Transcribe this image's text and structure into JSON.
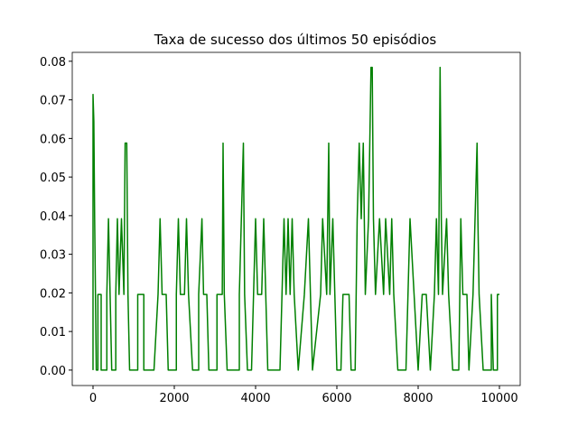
{
  "chart_data": {
    "type": "line",
    "title": "Taxa de sucesso dos últimos 50 episódios",
    "color": "#008000",
    "x": [
      0,
      0,
      20,
      40,
      60,
      80,
      120,
      120,
      200,
      200,
      340,
      340,
      380,
      420,
      460,
      560,
      560,
      600,
      640,
      700,
      760,
      790,
      830,
      860,
      900,
      1100,
      1100,
      1250,
      1250,
      1500,
      1600,
      1650,
      1700,
      1800,
      1850,
      2050,
      2050,
      2100,
      2150,
      2250,
      2300,
      2350,
      2450,
      2600,
      2600,
      2680,
      2720,
      2800,
      2850,
      3050,
      3050,
      3180,
      3200,
      3230,
      3300,
      3600,
      3600,
      3700,
      3730,
      3800,
      3900,
      3950,
      4000,
      4050,
      4150,
      4200,
      4250,
      4300,
      4600,
      4650,
      4700,
      4750,
      4800,
      4850,
      4900,
      4950,
      5050,
      5200,
      5300,
      5350,
      5400,
      5600,
      5650,
      5750,
      5800,
      5830,
      5900,
      5950,
      6000,
      6100,
      6150,
      6300,
      6350,
      6450,
      6500,
      6550,
      6600,
      6650,
      6700,
      6780,
      6840,
      6870,
      6900,
      6950,
      7050,
      7150,
      7200,
      7300,
      7350,
      7400,
      7500,
      7700,
      7750,
      7800,
      7900,
      8000,
      8100,
      8200,
      8300,
      8400,
      8450,
      8500,
      8540,
      8570,
      8600,
      8700,
      8750,
      8850,
      9000,
      9050,
      9100,
      9200,
      9250,
      9350,
      9400,
      9450,
      9470,
      9500,
      9600,
      9800,
      9800,
      9850,
      9950,
      9950,
      10000
    ],
    "values": [
      0,
      0.0714,
      0.0645,
      0.0392,
      0.0196,
      0,
      0,
      0.0196,
      0.0196,
      0,
      0,
      0.0196,
      0.0392,
      0.0196,
      0,
      0,
      0.0196,
      0.0392,
      0.0196,
      0.0392,
      0.0196,
      0.0588,
      0.0588,
      0.0196,
      0,
      0,
      0.0196,
      0.0196,
      0,
      0,
      0.0196,
      0.0392,
      0.0196,
      0.0196,
      0,
      0,
      0.0196,
      0.0392,
      0.0196,
      0.0196,
      0.0392,
      0.0196,
      0,
      0,
      0.0196,
      0.0392,
      0.0196,
      0.0196,
      0,
      0,
      0.0196,
      0.0196,
      0.0588,
      0.0196,
      0,
      0,
      0.0196,
      0.0588,
      0.0196,
      0,
      0,
      0.0196,
      0.0392,
      0.0196,
      0.0196,
      0.0392,
      0.0196,
      0,
      0,
      0.0196,
      0.0392,
      0.0196,
      0.0392,
      0.0196,
      0.0392,
      0.0196,
      0,
      0.0196,
      0.0392,
      0.0196,
      0,
      0.0196,
      0.0392,
      0.0196,
      0.0588,
      0.0196,
      0.0392,
      0.0196,
      0,
      0,
      0.0196,
      0.0196,
      0,
      0,
      0.0392,
      0.0588,
      0.0392,
      0.0588,
      0.0196,
      0.0392,
      0.0784,
      0.0784,
      0.0392,
      0.0196,
      0.0392,
      0.0196,
      0.0392,
      0.0196,
      0.0392,
      0.0196,
      0,
      0,
      0.0196,
      0.0392,
      0.0196,
      0,
      0.0196,
      0.0196,
      0,
      0.0196,
      0.0392,
      0.0196,
      0.0784,
      0.0392,
      0.0196,
      0.0392,
      0.0196,
      0,
      0,
      0.0392,
      0.0196,
      0.0196,
      0,
      0.0196,
      0.0392,
      0.0588,
      0.0392,
      0.0196,
      0,
      0,
      0.0196,
      0,
      0,
      0.0196,
      0.0196
    ],
    "xlim": [
      -511,
      10511
    ],
    "xticks": [
      0,
      2000,
      4000,
      6000,
      8000,
      10000
    ],
    "ylim": [
      -0.004,
      0.0823
    ],
    "yticks": [
      {
        "value": 0,
        "label": "0.00"
      },
      {
        "value": 0.01,
        "label": "0.01"
      },
      {
        "value": 0.02,
        "label": "0.02"
      },
      {
        "value": 0.03,
        "label": "0.03"
      },
      {
        "value": 0.04,
        "label": "0.04"
      },
      {
        "value": 0.05,
        "label": "0.05"
      },
      {
        "value": 0.06,
        "label": "0.06"
      },
      {
        "value": 0.07,
        "label": "0.07"
      },
      {
        "value": 0.08,
        "label": "0.08"
      }
    ]
  }
}
